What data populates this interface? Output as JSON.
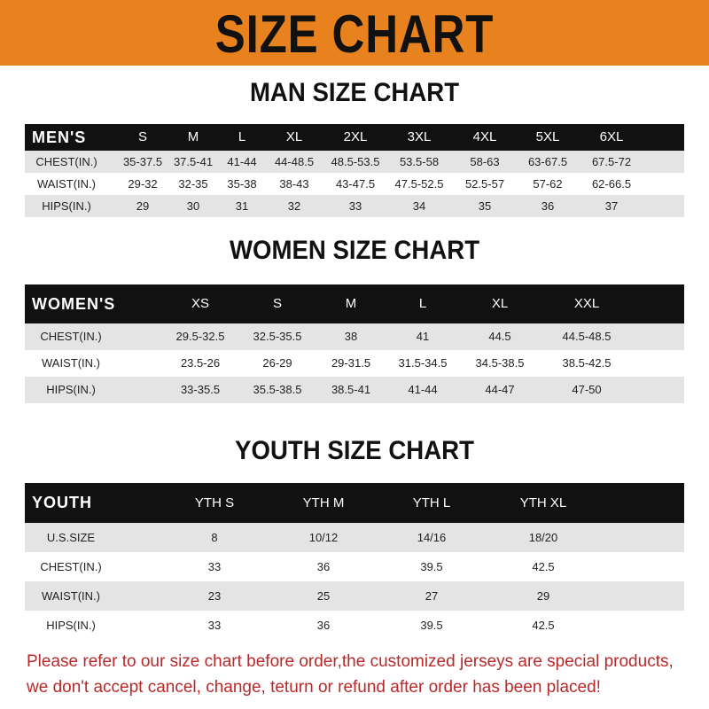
{
  "title": "SIZE CHART",
  "colors": {
    "banner": "#e8821e",
    "header_row": "#111111",
    "stripe": "#e4e4e4",
    "note": "#b8292a"
  },
  "men": {
    "title": "MAN SIZE CHART",
    "header": [
      "MEN'S",
      "S",
      "M",
      "L",
      "XL",
      "2XL",
      "3XL",
      "4XL",
      "5XL",
      "6XL"
    ],
    "rows": [
      [
        "CHEST(IN.)",
        "35-37.5",
        "37.5-41",
        "41-44",
        "44-48.5",
        "48.5-53.5",
        "53.5-58",
        "58-63",
        "63-67.5",
        "67.5-72"
      ],
      [
        "WAIST(IN.)",
        "29-32",
        "32-35",
        "35-38",
        "38-43",
        "43-47.5",
        "47.5-52.5",
        "52.5-57",
        "57-62",
        "62-66.5"
      ],
      [
        "HIPS(IN.)",
        "29",
        "30",
        "31",
        "32",
        "33",
        "34",
        "35",
        "36",
        "37"
      ]
    ]
  },
  "women": {
    "title": "WOMEN SIZE CHART",
    "header": [
      "WOMEN'S",
      "XS",
      "S",
      "M",
      "L",
      "XL",
      "XXL"
    ],
    "rows": [
      [
        "CHEST(IN.)",
        "29.5-32.5",
        "32.5-35.5",
        "38",
        "41",
        "44.5",
        "44.5-48.5"
      ],
      [
        "WAIST(IN.)",
        "23.5-26",
        "26-29",
        "29-31.5",
        "31.5-34.5",
        "34.5-38.5",
        "38.5-42.5"
      ],
      [
        "HIPS(IN.)",
        "33-35.5",
        "35.5-38.5",
        "38.5-41",
        "41-44",
        "44-47",
        "47-50"
      ]
    ]
  },
  "youth": {
    "title": "YOUTH SIZE CHART",
    "header": [
      "YOUTH",
      "YTH S",
      "YTH M",
      "YTH L",
      "YTH XL"
    ],
    "rows": [
      [
        "U.S.SIZE",
        "8",
        "10/12",
        "14/16",
        "18/20"
      ],
      [
        "CHEST(IN.)",
        "33",
        "36",
        "39.5",
        "42.5"
      ],
      [
        "WAIST(IN.)",
        "23",
        "25",
        "27",
        "29"
      ],
      [
        "HIPS(IN.)",
        "33",
        "36",
        "39.5",
        "42.5"
      ]
    ]
  },
  "note": {
    "line1": "Please refer to our size chart before order,the customized jerseys are special products,",
    "line2": "we don't accept cancel, change, teturn or refund after order has been placed!"
  }
}
